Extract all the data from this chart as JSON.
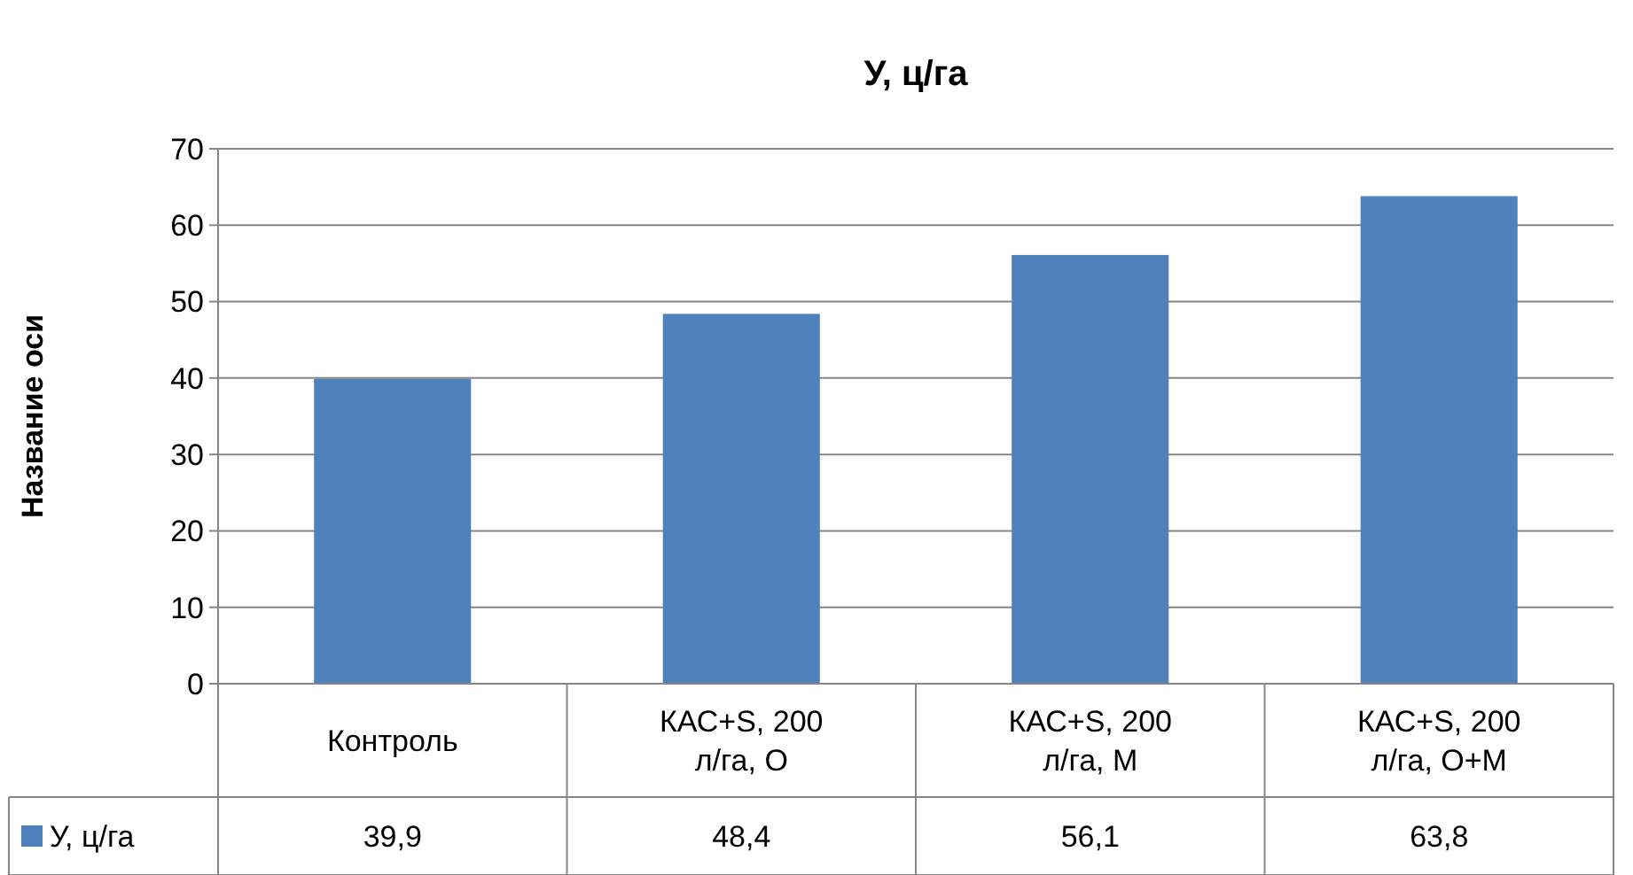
{
  "chart_data": {
    "type": "bar",
    "title": "У, ц/га",
    "ylabel": "Название оси",
    "categories": [
      "Контроль",
      "КАС+S, 200 л/га, О",
      "КАС+S, 200 л/га, М",
      "КАС+S, 200 л/га, О+М"
    ],
    "series": [
      {
        "name": "У, ц/га",
        "color": "#4f81bd",
        "values": [
          39.9,
          48.4,
          56.1,
          63.8
        ],
        "value_labels": [
          "39,9",
          "48,4",
          "56,1",
          "63,8"
        ]
      }
    ],
    "ylim": [
      0,
      70
    ],
    "yticks": [
      0,
      10,
      20,
      30,
      40,
      50,
      60,
      70
    ],
    "grid": "y",
    "legend": "bottom"
  }
}
